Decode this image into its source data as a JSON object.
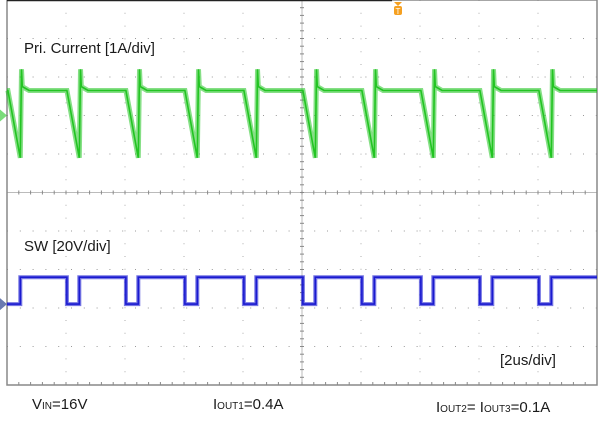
{
  "chart_data": {
    "type": "line",
    "title": "",
    "x_unit": "us",
    "xlim": [
      0,
      20
    ],
    "x_divisions": 10,
    "y_divisions": 10,
    "grid": true,
    "timebase_label": "[2us/div]",
    "trigger_marker": "T",
    "period_us": 2,
    "series": [
      {
        "name": "Pri. Current [1A/div]",
        "unit": "A",
        "scale_per_div": 1,
        "color": "#22c422",
        "reference_offset_div": 2.0,
        "flat_level": 0.65,
        "ramp_min": -1.1,
        "turn_on_spike": 1.2,
        "ramp_start_us": 0.03,
        "ramp_duration_us": 0.42
      },
      {
        "name": "SW [20V/div]",
        "unit": "V",
        "scale_per_div": 20,
        "color": "#1a1ad0",
        "reference_offset_div": -2.9,
        "high_level": 14,
        "low_level": 0,
        "low_start_us": 0.03,
        "low_duration_us": 0.42
      }
    ]
  },
  "annotations": {
    "vin": {
      "main": "V",
      "sub": "IN",
      "rest": "=16V"
    },
    "iout1": {
      "main": "I",
      "sub": "OUT1",
      "rest": "=0.4A"
    },
    "iout23": {
      "main1": "I",
      "sub1": "OUT2",
      "mid": "= I",
      "sub2": "OUT3",
      "rest": "=0.1A"
    }
  },
  "colors": {
    "trigger": "#f5a020",
    "grid": "#999999",
    "frame": "#888888"
  }
}
